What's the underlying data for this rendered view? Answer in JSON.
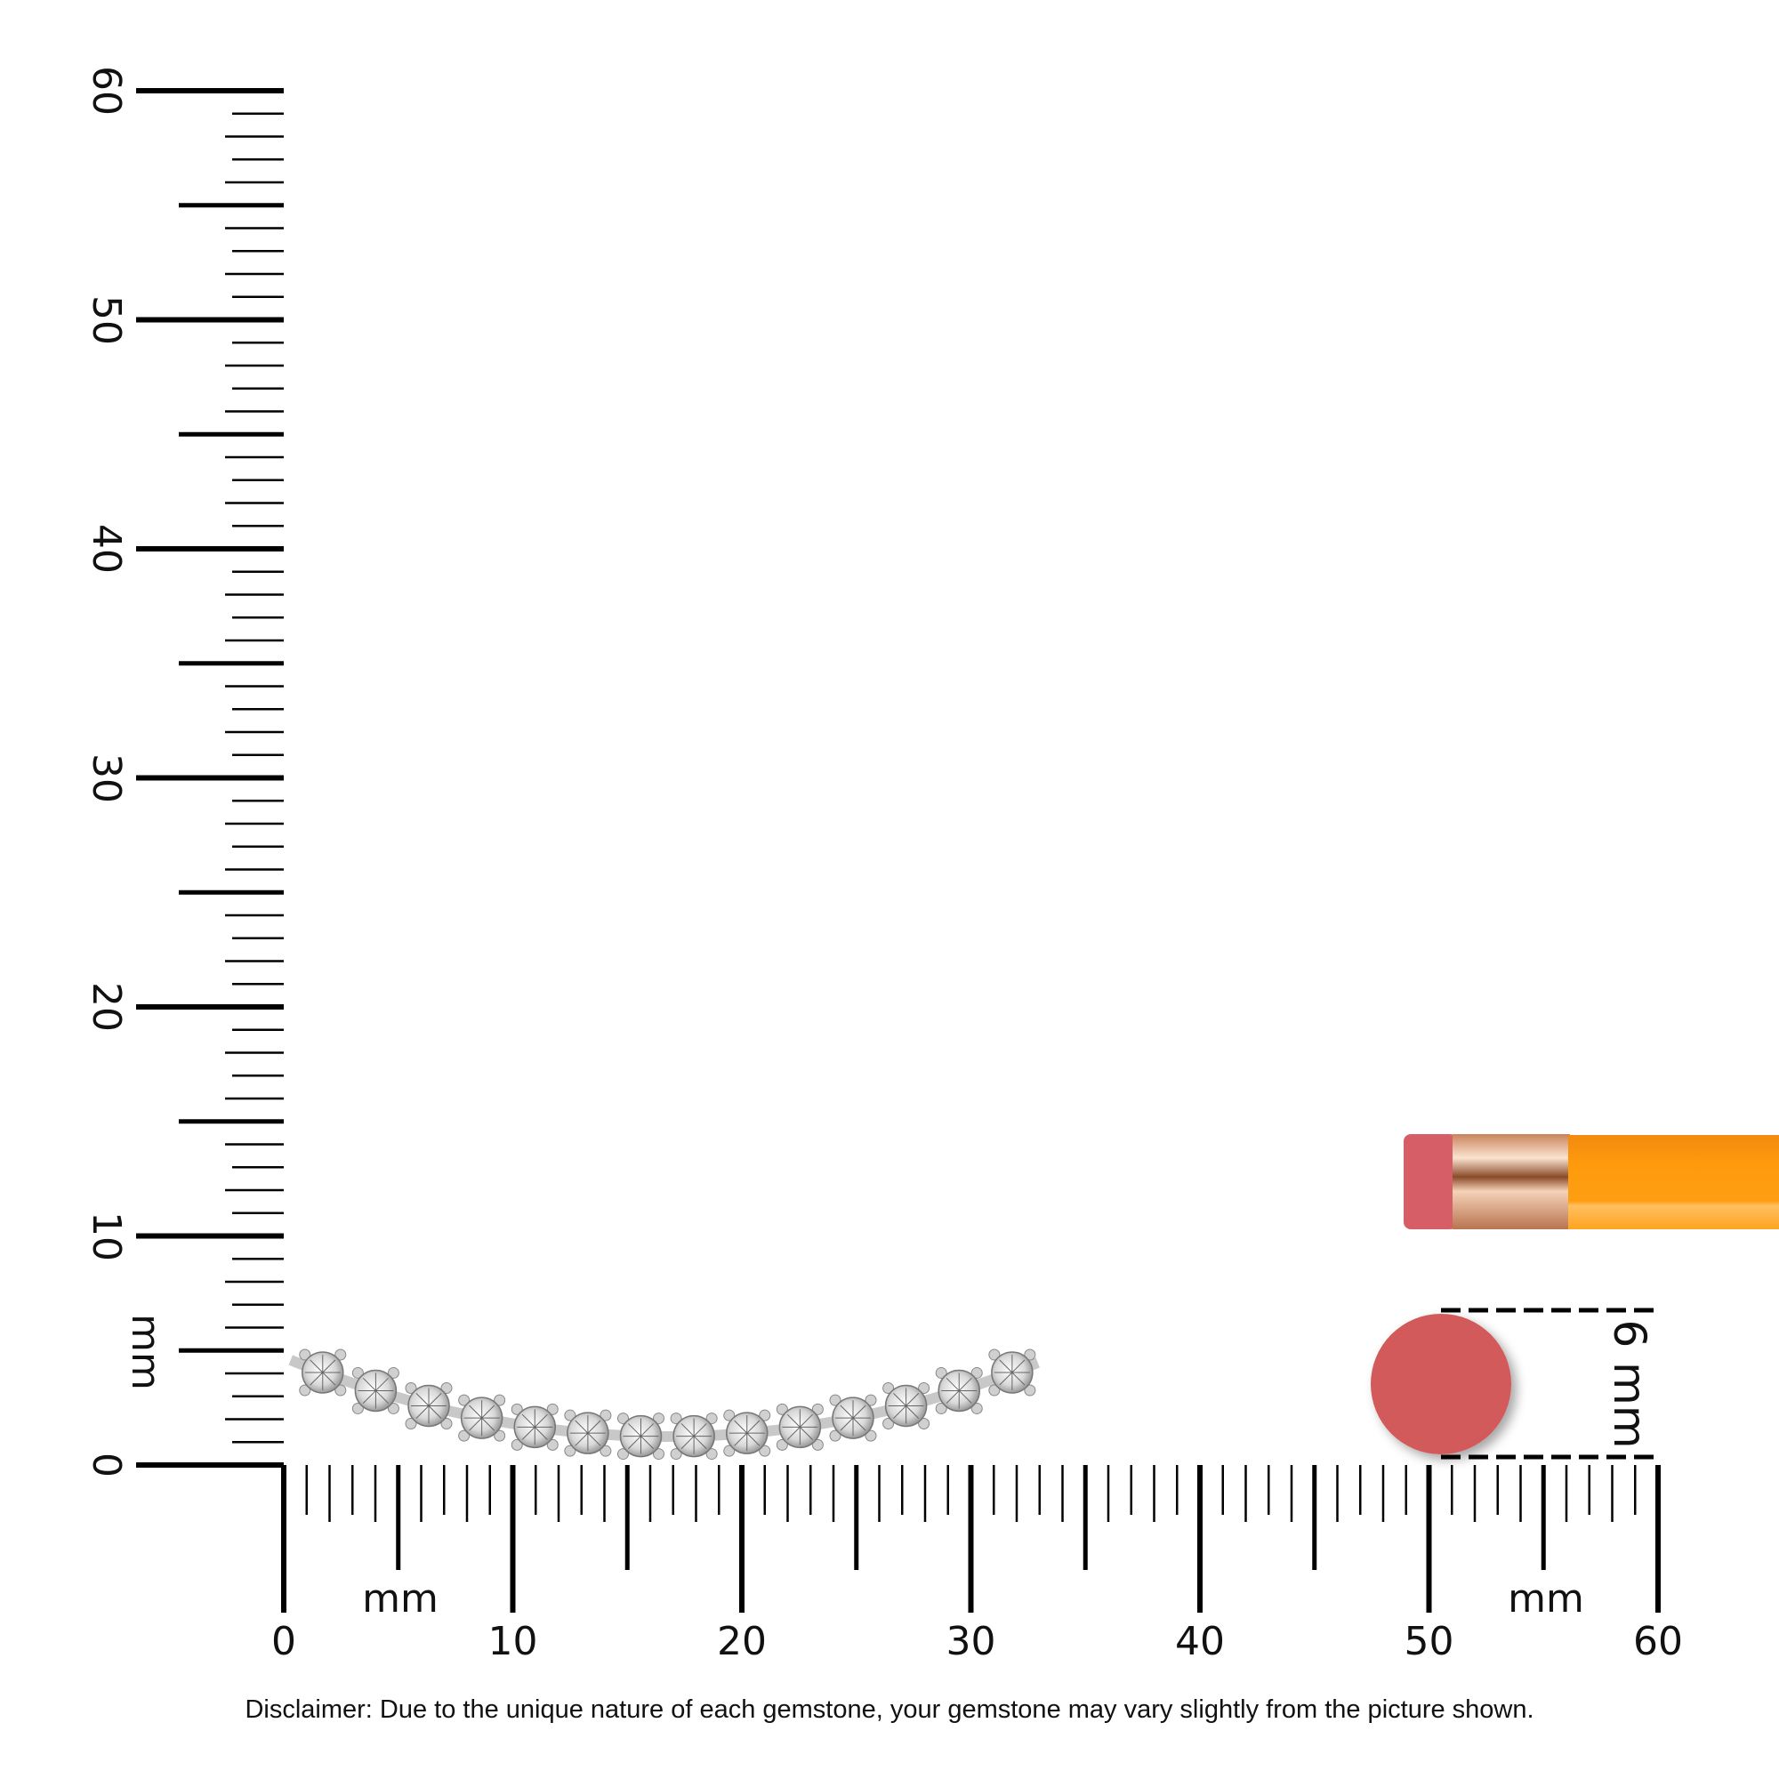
{
  "ruler": {
    "unit": "mm",
    "vertical_labels": [
      "0",
      "10",
      "20",
      "30",
      "40",
      "50",
      "60"
    ],
    "horizontal_labels": [
      "0",
      "10",
      "20",
      "30",
      "40",
      "50",
      "60"
    ],
    "vertical_unit_label": "mm",
    "horizontal_unit_label_left": "mm",
    "horizontal_unit_label_right": "mm",
    "range_mm": [
      0,
      60
    ]
  },
  "reference": {
    "object": "pencil eraser",
    "size_label": "6 mm",
    "eraser_color": "#d35a5a",
    "pencil_color": "#ff9a10",
    "ferrule_color": "#e0a77f"
  },
  "product": {
    "type": "curved diamond bar",
    "stone_count": 14,
    "length_mm": [
      0.5,
      33
    ]
  },
  "disclaimer": "Disclaimer: Due to the unique nature of each gemstone, your gemstone may vary slightly from the picture shown."
}
